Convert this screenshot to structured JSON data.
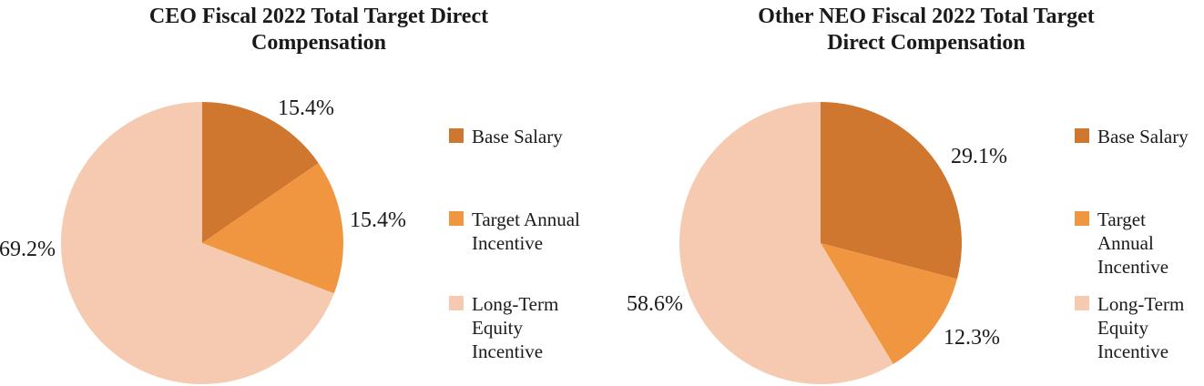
{
  "charts": [
    {
      "title_lines": "CEO Fiscal 2022 Total Target Direct\nCompensation",
      "slice_labels": [
        "15.4%",
        "15.4%",
        "69.2%"
      ],
      "legend": [
        "Base Salary",
        "Target Annual\nIncentive",
        "Long-Term\nEquity\nIncentive"
      ]
    },
    {
      "title_lines": "Other NEO Fiscal 2022 Total Target\nDirect Compensation",
      "slice_labels": [
        "29.1%",
        "12.3%",
        "58.6%"
      ],
      "legend": [
        "Base Salary",
        "Target Annual\nIncentive",
        "Long-Term\nEquity\nIncentive"
      ]
    }
  ],
  "chart_data": [
    {
      "type": "pie",
      "title": "CEO Fiscal 2022 Total Target Direct Compensation",
      "categories": [
        "Base Salary",
        "Target Annual Incentive",
        "Long-Term Equity Incentive"
      ],
      "values": [
        15.4,
        15.4,
        69.2
      ],
      "unit": "percent",
      "data_labels": [
        "15.4%",
        "15.4%",
        "69.2%"
      ],
      "colors": [
        "#D0772F",
        "#F09641",
        "#F6CAB0"
      ],
      "start_angle_deg": 0,
      "direction": "clockwise",
      "legend_position": "right"
    },
    {
      "type": "pie",
      "title": "Other NEO Fiscal 2022 Total Target Direct Compensation",
      "categories": [
        "Base Salary",
        "Target Annual Incentive",
        "Long-Term Equity Incentive"
      ],
      "values": [
        29.1,
        12.3,
        58.6
      ],
      "unit": "percent",
      "data_labels": [
        "29.1%",
        "12.3%",
        "58.6%"
      ],
      "colors": [
        "#D0772F",
        "#F09641",
        "#F6CAB0"
      ],
      "start_angle_deg": 0,
      "direction": "clockwise",
      "legend_position": "right"
    }
  ],
  "text_color": "#1a1a1a"
}
